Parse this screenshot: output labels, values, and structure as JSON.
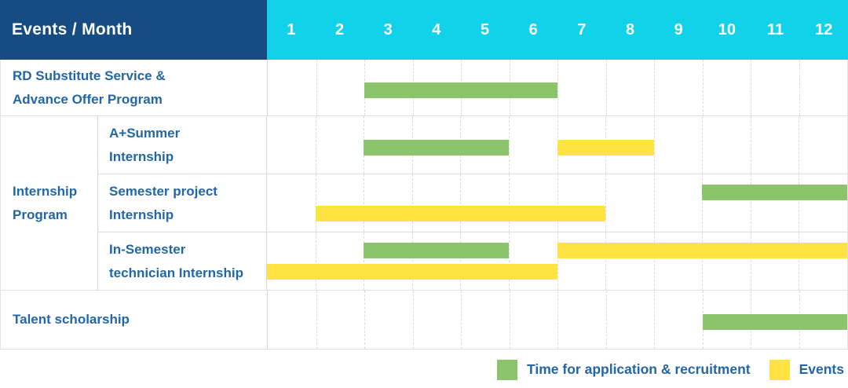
{
  "header": {
    "events_month_label": "Events / Month",
    "months": [
      "1",
      "2",
      "3",
      "4",
      "5",
      "6",
      "7",
      "8",
      "9",
      "10",
      "11",
      "12"
    ]
  },
  "colors": {
    "header_navy": "#164c82",
    "header_cyan": "#12d2e9",
    "application_green": "#8bc46a",
    "event_yellow": "#fee342",
    "label_blue": "#2366a8"
  },
  "legend": {
    "application": "Time for application & recruitment",
    "events": "Events"
  },
  "chart_data": {
    "type": "gantt",
    "x_axis_label": "Events / Month",
    "x_ticks": [
      1,
      2,
      3,
      4,
      5,
      6,
      7,
      8,
      9,
      10,
      11,
      12
    ],
    "x_range": [
      1,
      12
    ],
    "legend_entries": [
      {
        "color": "#8bc46a",
        "label": "Time for application & recruitment"
      },
      {
        "color": "#fee342",
        "label": "Events"
      }
    ],
    "rows": [
      {
        "group": "",
        "label": "RD Substitute Service & Advance Offer Program",
        "label_line1": "RD Substitute Service &",
        "label_line2": "Advance Offer Program",
        "bars": [
          {
            "series": "application",
            "color": "green",
            "start_month": 3,
            "end_month": 6,
            "track": "center"
          }
        ]
      },
      {
        "group": "Internship Program",
        "label": "A+Summer Internship",
        "label_line1": "A+Summer",
        "label_line2": "Internship",
        "bars": [
          {
            "series": "application",
            "color": "green",
            "start_month": 3,
            "end_month": 5,
            "track": "center"
          },
          {
            "series": "events",
            "color": "yellow",
            "start_month": 7,
            "end_month": 8,
            "track": "center"
          }
        ]
      },
      {
        "group": "Internship Program",
        "label": "Semester project Internship",
        "label_line1": "Semester project",
        "label_line2": "Internship",
        "bars": [
          {
            "series": "application",
            "color": "green",
            "start_month": 10,
            "end_month": 12,
            "track": "upper"
          },
          {
            "series": "events",
            "color": "yellow",
            "start_month": 2,
            "end_month": 7,
            "track": "lower"
          }
        ]
      },
      {
        "group": "Internship Program",
        "label": "In-Semester technician Internship",
        "label_line1": "In-Semester",
        "label_line2": "technician Internship",
        "bars": [
          {
            "series": "application",
            "color": "green",
            "start_month": 3,
            "end_month": 5,
            "track": "upper"
          },
          {
            "series": "events",
            "color": "yellow",
            "start_month": 7,
            "end_month": 12,
            "track": "upper"
          },
          {
            "series": "events",
            "color": "yellow",
            "start_month": 1,
            "end_month": 6,
            "track": "lower"
          }
        ]
      },
      {
        "group": "",
        "label": "Talent scholarship",
        "label_line1": "Talent scholarship",
        "label_line2": "",
        "bars": [
          {
            "series": "application",
            "color": "green",
            "start_month": 10,
            "end_month": 12,
            "track": "center"
          }
        ]
      }
    ],
    "group_label_line1": "Internship",
    "group_label_line2": "Program"
  }
}
